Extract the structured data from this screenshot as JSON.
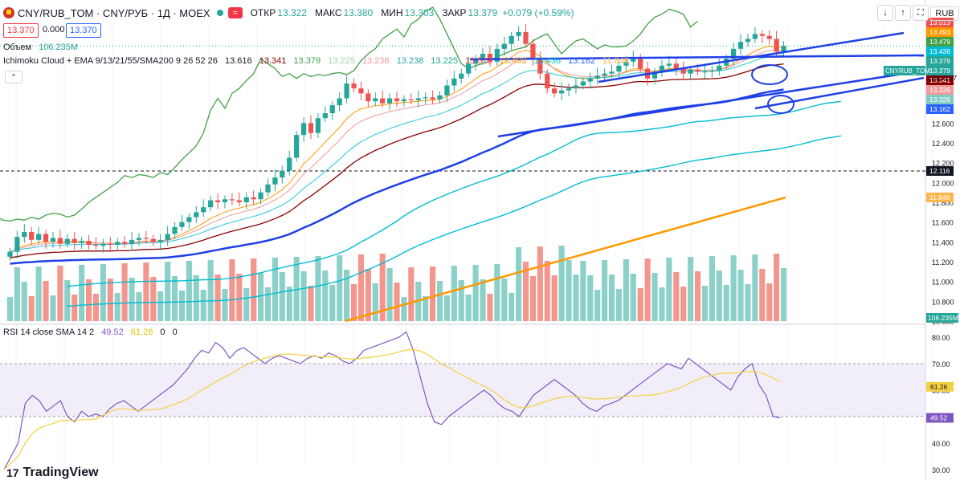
{
  "header": {
    "symbol": "CNY/RUB_TOM · CNY/РУБ · 1Д · MOEX",
    "open_label": "ОТКР",
    "open": "13.322",
    "high_label": "МАКС",
    "high": "13.380",
    "low_label": "МИН",
    "low": "13.303",
    "close_label": "ЗАКР",
    "close": "13.379",
    "change": "+0.079 (+0.59%)",
    "currency": "RUB"
  },
  "trade": {
    "sell": "13.370",
    "spread": "0.000",
    "buy": "13.370"
  },
  "volume_legend": {
    "label": "Объем",
    "value": "106.235M"
  },
  "indicator_legend": {
    "name": "Ichimoku Cloud + EMA 9/13/21/55/SMA200 9 26 52 26",
    "values": [
      "13.616",
      "13.341",
      "13.379",
      "13.225",
      "13.238",
      "13.238",
      "13.225",
      "13.513",
      "13.493",
      "13.436",
      "13.162",
      "11.849"
    ]
  },
  "rsi_legend": {
    "name": "RSI 14 close SMA 14 2",
    "rsi": "49.52",
    "sma": "61.26",
    "z1": "0",
    "z2": "0"
  },
  "logo": "TradingView",
  "colors": {
    "up": "#26a69a",
    "down": "#ef5350",
    "blue": "#1e40e8",
    "cyan": "#00bcd4",
    "green": "#43a047",
    "darkred": "#8b0000",
    "orange": "#ff9800",
    "rsi": "#7e57c2",
    "rsi_sma": "#f4d03f"
  },
  "chart_data": [
    {
      "type": "candlestick",
      "title": "CNY/RUB_TOM · CNY/РУБ · 1Д · MOEX",
      "ylim": [
        10.6,
        13.6
      ],
      "yticks": [
        "13.600",
        "13.400",
        "13.200",
        "13.000",
        "12.800",
        "12.600",
        "12.400",
        "12.200",
        "12.000",
        "11.800",
        "11.600",
        "11.400",
        "11.200",
        "11.000",
        "10.800",
        "10.600"
      ],
      "close": [
        11.3,
        11.45,
        11.5,
        11.42,
        11.48,
        11.4,
        11.44,
        11.38,
        11.43,
        11.39,
        11.41,
        11.37,
        11.36,
        11.38,
        11.37,
        11.4,
        11.38,
        11.42,
        11.44,
        11.43,
        11.4,
        11.42,
        11.48,
        11.55,
        11.6,
        11.65,
        11.7,
        11.75,
        11.82,
        11.8,
        11.83,
        11.82,
        11.8,
        11.85,
        11.83,
        11.9,
        11.98,
        12.05,
        12.12,
        12.25,
        12.48,
        12.6,
        12.5,
        12.65,
        12.7,
        12.78,
        12.85,
        13.0,
        12.95,
        12.9,
        12.82,
        12.85,
        12.8,
        12.85,
        12.82,
        12.84,
        12.83,
        12.85,
        12.86,
        12.84,
        12.88,
        12.98,
        13.05,
        13.1,
        13.2,
        13.25,
        13.3,
        13.22,
        13.35,
        13.4,
        13.48,
        13.52,
        13.4,
        13.25,
        13.1,
        12.95,
        12.9,
        12.93,
        12.95,
        12.98,
        13.02,
        13.05,
        13.08,
        13.1,
        13.12,
        13.18,
        13.22,
        13.25,
        13.15,
        13.05,
        13.12,
        13.18,
        13.2,
        13.15,
        13.1,
        13.14,
        13.12,
        13.12,
        13.13,
        13.18,
        13.25,
        13.35,
        13.42,
        13.45,
        13.5,
        13.48,
        13.45,
        13.32,
        13.379
      ],
      "annotations": [
        "CNYRUB_TOM",
        "15:15:37"
      ]
    },
    {
      "type": "line",
      "name": "Ichimoku + EMA 9/13/21/55/SMA200",
      "last_values": {
        "ema9": 13.379,
        "ema13": 13.341,
        "ema55": 13.162,
        "sma200": 11.849,
        "kijun": 13.238,
        "tenkan": 13.436,
        "span_a": 13.513,
        "span_b": 13.493,
        "chikou": 13.326
      },
      "horizontal_line": 12.116,
      "badges": [
        "13.513",
        "13.493",
        "13.479",
        "13.436",
        "13.379",
        "13.379",
        "13.341",
        "13.326",
        "13.326",
        "13.162",
        "12.116",
        "11.849"
      ]
    },
    {
      "type": "bar",
      "name": "Объем",
      "last": "106.235M"
    },
    {
      "type": "line",
      "name": "RSI 14 close SMA 14 2",
      "ylim": [
        30,
        80
      ],
      "yticks": [
        "80.00",
        "70.00",
        "60.00",
        "50.00",
        "40.00",
        "30.00"
      ],
      "band": [
        50,
        70
      ],
      "rsi_last": 49.52,
      "sma_last": 61.26,
      "rsi": [
        30,
        35,
        40,
        55,
        58,
        56,
        52,
        54,
        56,
        50,
        48,
        52,
        50,
        51,
        50,
        53,
        55,
        56,
        54,
        52,
        54,
        56,
        58,
        60,
        62,
        65,
        68,
        72,
        75,
        74,
        78,
        76,
        72,
        75,
        76,
        74,
        72,
        70,
        72,
        73,
        72,
        71,
        70,
        72,
        73,
        72,
        74,
        73,
        71,
        70,
        72,
        75,
        76,
        77,
        78,
        79,
        80,
        82,
        75,
        65,
        55,
        48,
        47,
        50,
        52,
        54,
        56,
        58,
        60,
        58,
        55,
        53,
        52,
        50,
        54,
        58,
        60,
        62,
        64,
        62,
        60,
        58,
        55,
        53,
        52,
        54,
        55,
        56,
        58,
        60,
        62,
        64,
        66,
        68,
        70,
        69,
        68,
        72,
        70,
        68,
        66,
        64,
        62,
        60,
        65,
        68,
        70,
        62,
        58,
        50,
        49.52
      ]
    }
  ]
}
